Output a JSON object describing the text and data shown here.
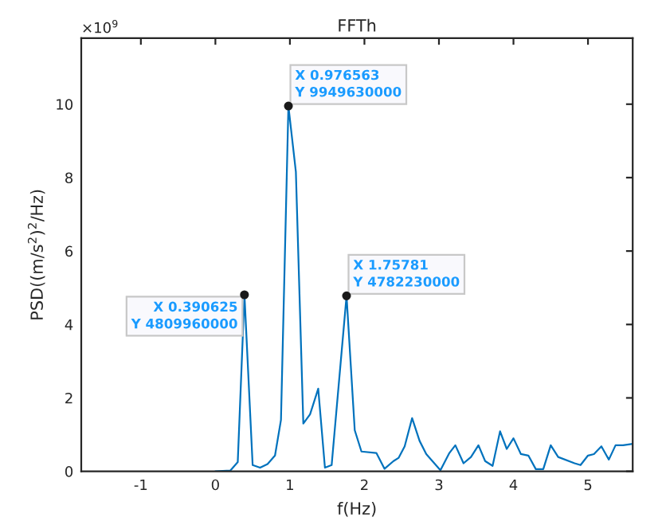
{
  "chart_data": {
    "type": "line",
    "title": "FFTh",
    "xlabel": "f(Hz)",
    "ylabel": "PSD((m/s$^{2}$)$^{2}$/Hz)",
    "xlim": [
      -1.8,
      5.6
    ],
    "ylim": [
      0,
      11.8
    ],
    "xticks": [
      -1,
      0,
      1,
      2,
      3,
      4,
      5
    ],
    "yticks": [
      0,
      2,
      4,
      6,
      8,
      10
    ],
    "grid": false,
    "series": [
      {
        "color": "#0072bd",
        "x": [
          0,
          0.2,
          0.3,
          0.39,
          0.5,
          0.6,
          0.7,
          0.8,
          0.88,
          0.98,
          1.08,
          1.18,
          1.27,
          1.38,
          1.47,
          1.56,
          1.76,
          1.87,
          1.96,
          2.16,
          2.27,
          2.39,
          2.46,
          2.54,
          2.64,
          2.74,
          2.83,
          3.02,
          3.14,
          3.22,
          3.33,
          3.43,
          3.53,
          3.62,
          3.72,
          3.82,
          3.91,
          4.0,
          4.1,
          4.2,
          4.3,
          4.4,
          4.5,
          4.6,
          4.82,
          4.9,
          5.0,
          5.08,
          5.18,
          5.28,
          5.37,
          5.47,
          5.6
        ],
        "values": [
          0,
          0.02,
          0.25,
          4.81,
          0.17,
          0.1,
          0.2,
          0.43,
          1.4,
          9.95,
          8.16,
          1.3,
          1.55,
          2.25,
          0.1,
          0.17,
          4.78,
          1.12,
          0.54,
          0.5,
          0.07,
          0.28,
          0.37,
          0.68,
          1.45,
          0.83,
          0.47,
          0.03,
          0.5,
          0.71,
          0.22,
          0.39,
          0.71,
          0.28,
          0.15,
          1.09,
          0.61,
          0.9,
          0.47,
          0.43,
          0.06,
          0.06,
          0.71,
          0.39,
          0.22,
          0.17,
          0.43,
          0.47,
          0.68,
          0.32,
          0.71,
          0.71,
          0.75
        ]
      }
    ],
    "annotations": [
      "×10$^{9}$",
      {
        "text": "X 0.390625\nY 4809960000",
        "x": 0.39,
        "y": 4.81
      },
      {
        "text": "X 0.976563\nY 9949630000",
        "x": 0.98,
        "y": 9.95
      },
      {
        "text": "X 1.75781\nY 4782230000",
        "x": 1.76,
        "y": 4.78
      }
    ]
  }
}
